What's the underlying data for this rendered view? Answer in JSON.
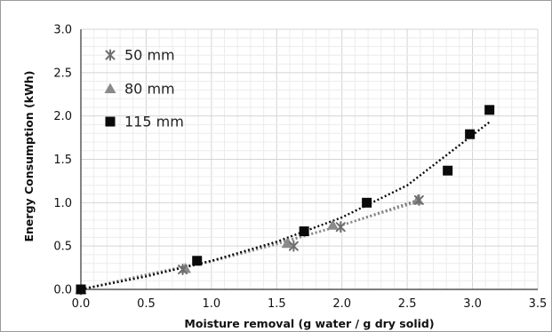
{
  "chart_data": {
    "type": "scatter",
    "xlabel": "Moisture removal (g water / g dry solid)",
    "ylabel": "Energy Consumption (kWh)",
    "xlim": [
      0,
      3.5
    ],
    "ylim": [
      0,
      3.0
    ],
    "x_ticks": [
      "0.0",
      "0.5",
      "1.0",
      "1.5",
      "2.0",
      "2.5",
      "3.0",
      "3.5"
    ],
    "y_ticks": [
      "0.0",
      "0.5",
      "1.0",
      "1.5",
      "2.0",
      "2.5",
      "3.0"
    ],
    "grid": true,
    "legend_position": "top-left",
    "series": [
      {
        "name": "50 mm",
        "marker": "asterisk",
        "color": "#6f6f6f",
        "x": [
          0.0,
          0.78,
          1.63,
          1.99,
          2.59
        ],
        "y": [
          0.0,
          0.23,
          0.5,
          0.72,
          1.03
        ],
        "trendline": {
          "style": "dotted",
          "x": [
            0.0,
            0.5,
            1.0,
            1.5,
            2.0,
            2.58
          ],
          "y": [
            0.0,
            0.17,
            0.33,
            0.53,
            0.74,
            1.03
          ]
        }
      },
      {
        "name": "80 mm",
        "marker": "triangle",
        "color": "#8a8a8a",
        "x": [
          0.0,
          0.8,
          1.58,
          1.93,
          2.58
        ],
        "y": [
          0.0,
          0.24,
          0.53,
          0.74,
          1.03
        ],
        "trendline": {
          "style": "dotted",
          "x": [
            0.0,
            0.5,
            1.0,
            1.5,
            2.0,
            2.58
          ],
          "y": [
            0.0,
            0.16,
            0.32,
            0.52,
            0.74,
            1.01
          ]
        }
      },
      {
        "name": "115 mm",
        "marker": "square",
        "color": "#0a0a0a",
        "x": [
          0.0,
          0.89,
          1.71,
          2.19,
          2.81,
          2.98,
          3.13
        ],
        "y": [
          0.0,
          0.33,
          0.67,
          1.0,
          1.37,
          1.79,
          2.07
        ],
        "trendline": {
          "style": "dotted",
          "x": [
            0.0,
            0.5,
            1.0,
            1.5,
            2.0,
            2.5,
            3.13
          ],
          "y": [
            0.0,
            0.15,
            0.33,
            0.55,
            0.83,
            1.2,
            1.93
          ]
        }
      }
    ]
  }
}
